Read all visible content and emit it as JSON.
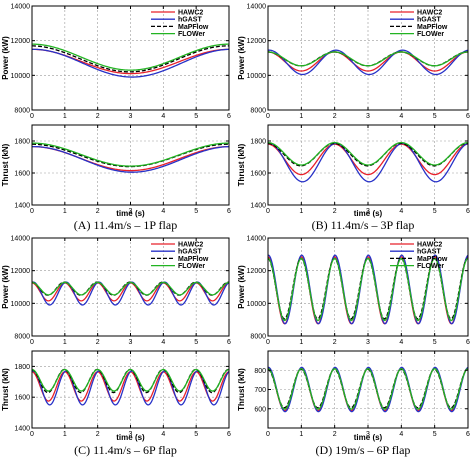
{
  "figure": {
    "captions": [
      "(A) 11.4m/s – 1P flap",
      "(B) 11.4m/s – 3P flap",
      "(C) 11.4m/s – 6P flap",
      "(D) 19m/s – 6P flap"
    ]
  },
  "legend": {
    "entries": [
      {
        "name": "HAWC2",
        "color": "#e8202a",
        "dash": "solid"
      },
      {
        "name": "hGAST",
        "color": "#2832c8",
        "dash": "solid"
      },
      {
        "name": "MaPFlow",
        "color": "#000000",
        "dash": "dashed"
      },
      {
        "name": "FLOWer",
        "color": "#22b422",
        "dash": "solid"
      }
    ]
  },
  "chart_data": [
    {
      "type": "line",
      "panel": "A",
      "caption": "(A) 11.4m/s – 1P flap",
      "flap_harmonic": 1,
      "xlabel": "time (s)",
      "xlim": [
        0,
        6
      ],
      "xticks": [
        0,
        1,
        2,
        3,
        4,
        5,
        6
      ],
      "grid": true,
      "legend_position": "top-right",
      "subplots": [
        {
          "ylabel": "Power (kW)",
          "ylim": [
            8000,
            14000
          ],
          "yticks": [
            8000,
            10000,
            12000,
            14000
          ],
          "series": [
            {
              "name": "HAWC2",
              "mean": 10800,
              "amplitude": 700,
              "phase": 0.0
            },
            {
              "name": "hGAST",
              "mean": 10700,
              "amplitude": 800,
              "phase": -0.05
            },
            {
              "name": "MaPFlow",
              "mean": 10950,
              "amplitude": 750,
              "phase": 0.03
            },
            {
              "name": "FLOWer",
              "mean": 11050,
              "amplitude": 750,
              "phase": 0.0
            }
          ]
        },
        {
          "ylabel": "Thrust (kN)",
          "ylim": [
            1400,
            1900
          ],
          "yticks": [
            1400,
            1600,
            1800
          ],
          "series": [
            {
              "name": "HAWC2",
              "mean": 1690,
              "amplitude": 75,
              "phase": 0.0
            },
            {
              "name": "hGAST",
              "mean": 1685,
              "amplitude": 80,
              "phase": -0.05
            },
            {
              "name": "MaPFlow",
              "mean": 1710,
              "amplitude": 70,
              "phase": 0.03
            },
            {
              "name": "FLOWer",
              "mean": 1715,
              "amplitude": 72,
              "phase": 0.0
            }
          ]
        }
      ]
    },
    {
      "type": "line",
      "panel": "B",
      "caption": "(B) 11.4m/s – 3P flap",
      "flap_harmonic": 3,
      "xlabel": "time (s)",
      "xlim": [
        0,
        6
      ],
      "xticks": [
        0,
        1,
        2,
        3,
        4,
        5,
        6
      ],
      "grid": true,
      "legend_position": "top-right",
      "subplots": [
        {
          "ylabel": "Power (kW)",
          "ylim": [
            8000,
            14000
          ],
          "yticks": [
            8000,
            10000,
            12000,
            14000
          ],
          "series": [
            {
              "name": "HAWC2",
              "mean": 10800,
              "amplitude": 550,
              "phase": 0.0
            },
            {
              "name": "hGAST",
              "mean": 10750,
              "amplitude": 700,
              "phase": -0.12
            },
            {
              "name": "MaPFlow",
              "mean": 10950,
              "amplitude": 400,
              "phase": 0.05
            },
            {
              "name": "FLOWer",
              "mean": 10950,
              "amplitude": 400,
              "phase": 0.0
            }
          ]
        },
        {
          "ylabel": "Thrust (kN)",
          "ylim": [
            1400,
            1900
          ],
          "yticks": [
            1400,
            1600,
            1800
          ],
          "series": [
            {
              "name": "HAWC2",
              "mean": 1685,
              "amplitude": 95,
              "phase": 0.0
            },
            {
              "name": "hGAST",
              "mean": 1665,
              "amplitude": 120,
              "phase": -0.12
            },
            {
              "name": "MaPFlow",
              "mean": 1715,
              "amplitude": 70,
              "phase": 0.05
            },
            {
              "name": "FLOWer",
              "mean": 1720,
              "amplitude": 70,
              "phase": 0.0
            }
          ]
        }
      ]
    },
    {
      "type": "line",
      "panel": "C",
      "caption": "(C) 11.4m/s – 6P flap",
      "flap_harmonic": 6,
      "xlabel": "time (s)",
      "xlim": [
        0,
        6
      ],
      "xticks": [
        0,
        1,
        2,
        3,
        4,
        5,
        6
      ],
      "grid": true,
      "legend_position": "top-right",
      "subplots": [
        {
          "ylabel": "Power (kW)",
          "ylim": [
            8000,
            14000
          ],
          "yticks": [
            8000,
            10000,
            12000,
            14000
          ],
          "series": [
            {
              "name": "HAWC2",
              "mean": 10700,
              "amplitude": 550,
              "phase": 0.0
            },
            {
              "name": "hGAST",
              "mean": 10600,
              "amplitude": 700,
              "phase": -0.25
            },
            {
              "name": "MaPFlow",
              "mean": 10900,
              "amplitude": 400,
              "phase": 0.1
            },
            {
              "name": "FLOWer",
              "mean": 10900,
              "amplitude": 380,
              "phase": 0.0
            }
          ]
        },
        {
          "ylabel": "Thrust (kN)",
          "ylim": [
            1400,
            1900
          ],
          "yticks": [
            1400,
            1600,
            1800
          ],
          "series": [
            {
              "name": "HAWC2",
              "mean": 1670,
              "amplitude": 95,
              "phase": 0.0
            },
            {
              "name": "hGAST",
              "mean": 1660,
              "amplitude": 110,
              "phase": -0.25
            },
            {
              "name": "MaPFlow",
              "mean": 1705,
              "amplitude": 75,
              "phase": 0.1
            },
            {
              "name": "FLOWer",
              "mean": 1710,
              "amplitude": 70,
              "phase": 0.0
            }
          ]
        }
      ]
    },
    {
      "type": "line",
      "panel": "D",
      "caption": "(D) 19m/s – 6P flap",
      "flap_harmonic": 6,
      "xlabel": "time (s)",
      "xlim": [
        0,
        6
      ],
      "xticks": [
        0,
        1,
        2,
        3,
        4,
        5,
        6
      ],
      "grid": true,
      "legend_position": "top-right",
      "subplots": [
        {
          "ylabel": "Power (kW)",
          "ylim": [
            8000,
            14000
          ],
          "yticks": [
            8000,
            10000,
            12000,
            14000
          ],
          "series": [
            {
              "name": "HAWC2",
              "mean": 10800,
              "amplitude": 2050,
              "phase": 0.0
            },
            {
              "name": "hGAST",
              "mean": 10850,
              "amplitude": 2100,
              "phase": -0.08
            },
            {
              "name": "MaPFlow",
              "mean": 10900,
              "amplitude": 1850,
              "phase": 0.05
            },
            {
              "name": "FLOWer",
              "mean": 10850,
              "amplitude": 1900,
              "phase": 0.0
            }
          ]
        },
        {
          "ylabel": "Thrust (kN)",
          "ylim": [
            500,
            900
          ],
          "yticks": [
            600,
            700,
            800
          ],
          "series": [
            {
              "name": "HAWC2",
              "mean": 700,
              "amplitude": 110,
              "phase": 0.0
            },
            {
              "name": "hGAST",
              "mean": 700,
              "amplitude": 115,
              "phase": -0.08
            },
            {
              "name": "MaPFlow",
              "mean": 705,
              "amplitude": 100,
              "phase": 0.05
            },
            {
              "name": "FLOWer",
              "mean": 703,
              "amplitude": 105,
              "phase": 0.0
            }
          ]
        }
      ]
    }
  ]
}
